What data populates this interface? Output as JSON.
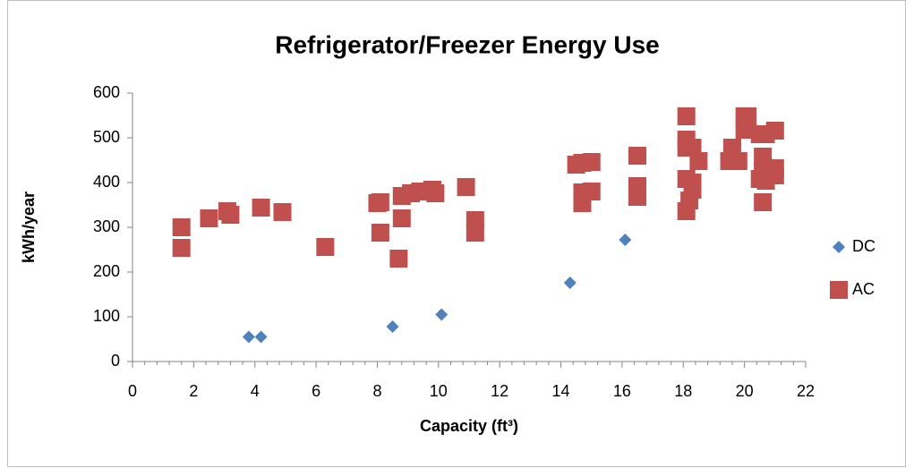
{
  "chart_data": {
    "type": "scatter",
    "title": "Refrigerator/Freezer Energy Use",
    "xlabel": "Capacity (ft³)",
    "ylabel": "kWh/year",
    "xlim": [
      0,
      22
    ],
    "xticks": [
      0,
      2,
      4,
      6,
      8,
      10,
      12,
      14,
      16,
      18,
      20,
      22
    ],
    "ylim": [
      0,
      600
    ],
    "yticks": [
      0,
      100,
      200,
      300,
      400,
      500,
      600
    ],
    "legend": "right",
    "series": [
      {
        "name": "DC",
        "color": "#4f81bd",
        "marker": "diamond",
        "x": [
          3.8,
          4.2,
          8.5,
          10.1,
          14.3,
          16.1
        ],
        "values": [
          55,
          55,
          78,
          105,
          176,
          272
        ]
      },
      {
        "name": "AC",
        "color": "#c0504d",
        "marker": "square",
        "x": [
          1.6,
          1.6,
          2.5,
          3.1,
          3.2,
          4.2,
          4.9,
          6.3,
          8.0,
          8.1,
          8.1,
          8.8,
          8.7,
          8.8,
          9.1,
          9.4,
          9.8,
          9.9,
          10.9,
          11.2,
          11.2,
          14.5,
          14.7,
          15.0,
          14.7,
          14.7,
          15.0,
          16.5,
          16.5,
          16.5,
          18.1,
          18.1,
          18.1,
          18.3,
          18.5,
          18.1,
          18.3,
          18.3,
          18.2,
          18.1,
          19.5,
          19.6,
          19.8,
          20.0,
          20.1,
          20.0,
          20.1,
          20.5,
          20.7,
          20.6,
          20.6,
          20.5,
          20.7,
          20.6,
          21.0,
          21.0,
          21.0
        ],
        "values": [
          300,
          254,
          320,
          336,
          328,
          344,
          334,
          256,
          354,
          356,
          288,
          370,
          230,
          320,
          376,
          380,
          384,
          376,
          390,
          316,
          288,
          440,
          444,
          446,
          354,
          378,
          380,
          460,
          392,
          368,
          548,
          496,
          478,
          478,
          448,
          408,
          400,
          384,
          360,
          336,
          448,
          478,
          448,
          548,
          548,
          518,
          518,
          508,
          508,
          458,
          428,
          408,
          404,
          356,
          516,
          432,
          416
        ]
      }
    ]
  }
}
